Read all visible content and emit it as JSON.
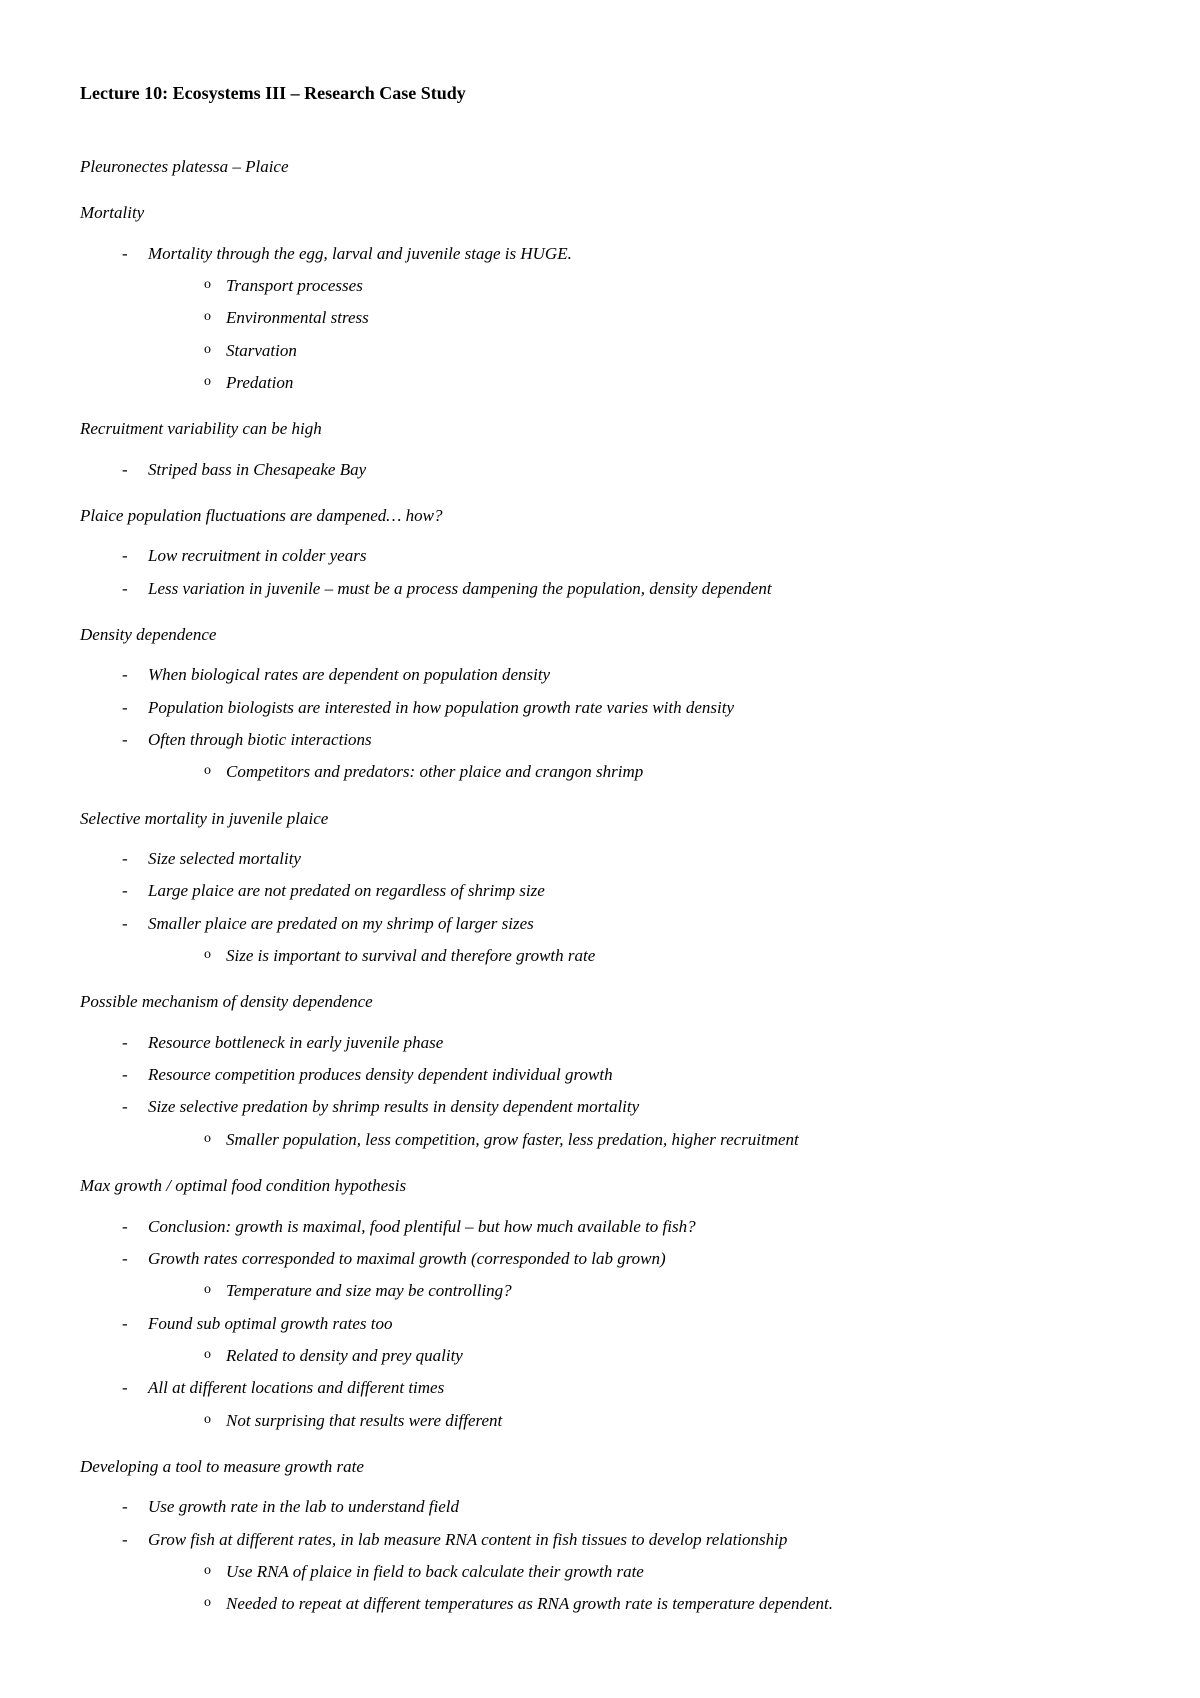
{
  "title": "Lecture 10: Ecosystems III – Research Case Study",
  "subtitle": "Pleuronectes platessa – Plaice",
  "sections": [
    {
      "heading": "Mortality",
      "items": [
        {
          "text": "Mortality through the egg, larval and juvenile stage is HUGE.",
          "sub": [
            "Transport processes",
            "Environmental stress",
            "Starvation",
            "Predation"
          ]
        }
      ]
    },
    {
      "heading": "Recruitment variability can be high",
      "items": [
        {
          "text": "Striped bass in Chesapeake Bay"
        }
      ]
    },
    {
      "heading": "Plaice population fluctuations are dampened… how?",
      "items": [
        {
          "text": "Low recruitment in colder years"
        },
        {
          "text": "Less variation in juvenile – must be a process dampening the population, density dependent"
        }
      ]
    },
    {
      "heading": "Density dependence",
      "items": [
        {
          "text": "When biological rates are dependent on population density"
        },
        {
          "text": "Population biologists are interested in how population growth rate varies with density"
        },
        {
          "text": "Often through biotic interactions",
          "sub": [
            "Competitors and predators: other plaice and crangon shrimp"
          ]
        }
      ]
    },
    {
      "heading": "Selective mortality in juvenile plaice",
      "items": [
        {
          "text": "Size selected mortality"
        },
        {
          "text": "Large plaice are not predated on regardless of shrimp size"
        },
        {
          "text": "Smaller plaice are predated on my shrimp of larger sizes",
          "sub": [
            "Size is important to survival and therefore growth rate"
          ]
        }
      ]
    },
    {
      "heading": "Possible mechanism of density dependence",
      "items": [
        {
          "text": "Resource bottleneck in early juvenile phase"
        },
        {
          "text": "Resource competition produces density dependent individual growth"
        },
        {
          "text": "Size selective predation by shrimp results in density dependent mortality",
          "sub": [
            "Smaller population, less competition, grow faster, less predation, higher recruitment"
          ]
        }
      ]
    },
    {
      "heading": "Max growth / optimal food condition hypothesis",
      "items": [
        {
          "text": "Conclusion: growth is maximal, food plentiful – but how much available to fish?"
        },
        {
          "text": "Growth rates corresponded to maximal growth (corresponded to lab grown)",
          "sub": [
            "Temperature and size may be controlling?"
          ]
        },
        {
          "text": "Found sub optimal growth rates too",
          "sub": [
            "Related to density and prey quality"
          ]
        },
        {
          "text": "All at different locations and different times",
          "sub": [
            "Not surprising that results were different"
          ]
        }
      ]
    },
    {
      "heading": "Developing a tool to measure growth rate",
      "items": [
        {
          "text": "Use growth rate in the lab to understand field"
        },
        {
          "text": "Grow fish at different rates, in lab measure RNA content in fish tissues to develop relationship",
          "sub": [
            "Use RNA of plaice in field to back calculate their growth rate",
            "Needed to repeat at different temperatures as RNA growth rate is temperature dependent."
          ]
        }
      ]
    }
  ]
}
